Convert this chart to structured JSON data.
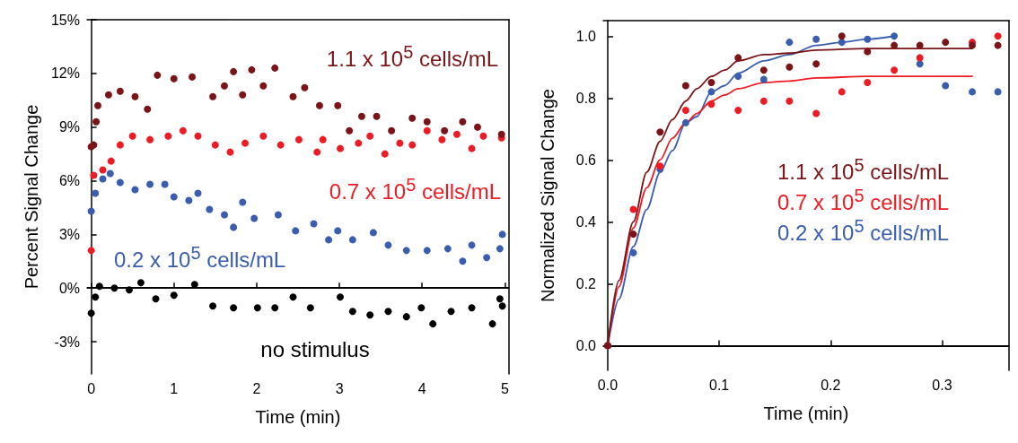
{
  "chart_data": [
    {
      "type": "scatter",
      "xlabel": "Time (min)",
      "ylabel": "Percent Signal Change",
      "xlim": [
        -0.05,
        5.05
      ],
      "xticks": [
        0,
        1,
        2,
        3,
        4,
        5
      ],
      "ylim": [
        -4.8,
        15
      ],
      "yticks": [
        {
          "value": -3,
          "label": "-3%"
        },
        {
          "value": 0,
          "label": "0%"
        },
        {
          "value": 3,
          "label": "3%"
        },
        {
          "value": 6,
          "label": "6%"
        },
        {
          "value": 9,
          "label": "9%"
        },
        {
          "value": 12,
          "label": "12%"
        },
        {
          "value": 15,
          "label": "15%"
        }
      ],
      "grid": false,
      "legend": false,
      "marker": "circle",
      "ref_lines": [
        {
          "axis": "y",
          "value": 0,
          "color": "#000000"
        }
      ],
      "series": [
        {
          "name": "1.1 x 10$^{5}$ cells/mL",
          "color": "#7b1419",
          "x": [
            0,
            0.03,
            0.06,
            0.08,
            0.21,
            0.35,
            0.53,
            0.68,
            0.8,
            1.0,
            1.22,
            1.47,
            1.61,
            1.72,
            1.83,
            1.94,
            2.08,
            2.22,
            2.44,
            2.58,
            2.76,
            2.98,
            3.12,
            3.27,
            3.45,
            3.63,
            3.88,
            4.06,
            4.27,
            4.49,
            4.67,
            4.96
          ],
          "values": [
            7.9,
            8,
            9.3,
            10.2,
            10.8,
            11,
            10.7,
            10,
            11.9,
            11.7,
            11.8,
            10.7,
            11.3,
            12.1,
            10.8,
            12.2,
            11.3,
            12.3,
            10.7,
            11.2,
            10.2,
            10.2,
            8.8,
            9.6,
            9.6,
            8.8,
            9.5,
            9.3,
            8.8,
            9.3,
            9,
            8.6
          ]
        },
        {
          "name": "0.7 x 10$^{5}$ cells/mL",
          "color": "#ed1c24",
          "x": [
            0,
            0.03,
            0.14,
            0.24,
            0.35,
            0.5,
            0.71,
            0.93,
            1.11,
            1.29,
            1.5,
            1.68,
            1.86,
            2.08,
            2.29,
            2.51,
            2.73,
            2.8,
            3.01,
            3.23,
            3.37,
            3.55,
            3.73,
            3.88,
            4.06,
            4.24,
            4.42,
            4.6,
            4.74,
            4.96
          ],
          "values": [
            2.1,
            6.3,
            6.6,
            7.1,
            8,
            8.5,
            8.3,
            8.5,
            8.8,
            8.5,
            8,
            7.6,
            8.1,
            8.5,
            8,
            8.3,
            7.6,
            8.3,
            7.8,
            8.1,
            8.5,
            7.5,
            8.1,
            8,
            8.8,
            8.3,
            8.6,
            7.8,
            8.5,
            8.4
          ]
        },
        {
          "name": "0.2 x 10$^{5}$ cells/mL",
          "color": "#3a5db0",
          "x": [
            0,
            0.05,
            0.14,
            0.23,
            0.35,
            0.53,
            0.71,
            0.89,
            1.0,
            1.18,
            1.29,
            1.43,
            1.61,
            1.72,
            1.83,
            1.97,
            2.26,
            2.47,
            2.69,
            2.87,
            2.98,
            3.16,
            3.41,
            3.59,
            3.81,
            4.06,
            4.31,
            4.49,
            4.6,
            4.78,
            4.94,
            4.97
          ],
          "values": [
            4.3,
            5.3,
            6.1,
            6.4,
            5.9,
            5.5,
            5.8,
            5.8,
            5.1,
            4.9,
            5.3,
            4.4,
            4.1,
            3.4,
            4.8,
            3.9,
            4.1,
            3.2,
            3.6,
            2.7,
            3.2,
            2.7,
            3.1,
            2.4,
            2.1,
            2.1,
            2.2,
            1.5,
            2.4,
            1.7,
            2.2,
            3
          ]
        },
        {
          "name": "no stimulus",
          "color": "#000000",
          "x": [
            0,
            0.05,
            0.1,
            0.28,
            0.46,
            0.6,
            0.78,
            1.0,
            1.25,
            1.47,
            1.72,
            2.01,
            2.22,
            2.44,
            2.65,
            3.01,
            3.16,
            3.37,
            3.59,
            3.81,
            3.99,
            4.13,
            4.35,
            4.6,
            4.85,
            4.94,
            4.97
          ],
          "values": [
            -1.4,
            -0.5,
            0.1,
            0,
            -0.1,
            0.3,
            -0.6,
            -0.4,
            0.2,
            -1,
            -1.1,
            -1.1,
            -1.1,
            -0.5,
            -1.1,
            -0.5,
            -1.3,
            -1.5,
            -1.3,
            -1.6,
            -1.1,
            -2,
            -1.3,
            -1.1,
            -2,
            -0.6,
            -1
          ]
        }
      ]
    },
    {
      "type": "scatter",
      "xlabel": "Time (min)",
      "ylabel": "Normalized Signal Change",
      "xlim": [
        -0.004,
        0.36
      ],
      "xticks": [
        {
          "value": 0,
          "label": "0.0"
        },
        {
          "value": 0.1,
          "label": "0.1"
        },
        {
          "value": 0.2,
          "label": "0.2"
        },
        {
          "value": 0.3,
          "label": "0.3"
        }
      ],
      "ylim": [
        -0.08,
        1.05
      ],
      "yticks": [
        {
          "value": 0,
          "label": "0.0"
        },
        {
          "value": 0.2,
          "label": "0.2"
        },
        {
          "value": 0.4,
          "label": "0.4"
        },
        {
          "value": 0.6,
          "label": "0.6"
        },
        {
          "value": 0.8,
          "label": "0.8"
        },
        {
          "value": 1,
          "label": "1.0"
        }
      ],
      "grid": false,
      "legend": false,
      "marker": "circle",
      "ref_lines": [
        {
          "axis": "y",
          "value": 0,
          "color": "#000000"
        }
      ],
      "series": [
        {
          "name": "1.1 x 10$^{5}$ cells/mL",
          "color": "#7b1419",
          "x": [
            0,
            0.023,
            0.047,
            0.07,
            0.093,
            0.117,
            0.14,
            0.163,
            0.187,
            0.21,
            0.233,
            0.257,
            0.28,
            0.303,
            0.327,
            0.35
          ],
          "values": [
            0,
            0.36,
            0.69,
            0.84,
            0.85,
            0.93,
            0.89,
            0.9,
            0.91,
            1.0,
            0.95,
            0.97,
            0.97,
            0.98,
            0.97,
            0.97
          ]
        },
        {
          "name": "0.7 x 10$^{5}$ cells/mL",
          "color": "#ed1c24",
          "x": [
            0,
            0.023,
            0.047,
            0.07,
            0.093,
            0.117,
            0.14,
            0.163,
            0.187,
            0.21,
            0.233,
            0.257,
            0.28,
            0.303,
            0.327,
            0.35
          ],
          "values": [
            0,
            0.44,
            0.58,
            0.76,
            0.78,
            0.76,
            0.79,
            0.79,
            0.75,
            0.82,
            0.85,
            0.89,
            0.93,
            null,
            0.98,
            1.0
          ]
        },
        {
          "name": "0.2 x 10$^{5}$ cells/mL",
          "color": "#3a5db0",
          "x": [
            0,
            0.023,
            0.047,
            0.07,
            0.093,
            0.117,
            0.14,
            0.163,
            0.187,
            0.21,
            0.233,
            0.257,
            0.28,
            0.303,
            0.327,
            0.35
          ],
          "values": [
            0,
            0.3,
            0.57,
            0.72,
            0.82,
            0.87,
            0.86,
            0.98,
            0.99,
            0.98,
            0.99,
            1.0,
            0.91,
            0.84,
            0.82,
            0.82
          ]
        },
        {
          "type": "line",
          "marker": "none",
          "color": "#7b1419",
          "x": [
            0,
            0.01,
            0.023,
            0.035,
            0.047,
            0.058,
            0.07,
            0.08,
            0.093,
            0.105,
            0.117,
            0.14,
            0.163,
            0.187,
            0.233,
            0.327
          ],
          "values": [
            0,
            0.21,
            0.4,
            0.56,
            0.66,
            0.73,
            0.79,
            0.83,
            0.87,
            0.89,
            0.92,
            0.94,
            0.945,
            0.955,
            0.96,
            0.96
          ]
        },
        {
          "type": "line",
          "marker": "none",
          "color": "#ed1c24",
          "x": [
            0,
            0.01,
            0.023,
            0.035,
            0.047,
            0.058,
            0.07,
            0.08,
            0.093,
            0.105,
            0.117,
            0.14,
            0.163,
            0.187,
            0.233,
            0.327
          ],
          "values": [
            0,
            0.19,
            0.38,
            0.51,
            0.6,
            0.67,
            0.72,
            0.75,
            0.79,
            0.81,
            0.83,
            0.85,
            0.855,
            0.865,
            0.87,
            0.87
          ]
        },
        {
          "type": "line",
          "marker": "none",
          "color": "#3a5db0",
          "x": [
            0,
            0.01,
            0.023,
            0.035,
            0.047,
            0.058,
            0.07,
            0.08,
            0.093,
            0.105,
            0.117,
            0.14,
            0.163,
            0.187,
            0.21,
            0.233,
            0.257
          ],
          "values": [
            0,
            0.15,
            0.32,
            0.44,
            0.56,
            0.63,
            0.72,
            0.74,
            0.82,
            0.84,
            0.88,
            0.92,
            0.94,
            0.97,
            0.98,
            0.99,
            1.0
          ]
        }
      ]
    }
  ]
}
